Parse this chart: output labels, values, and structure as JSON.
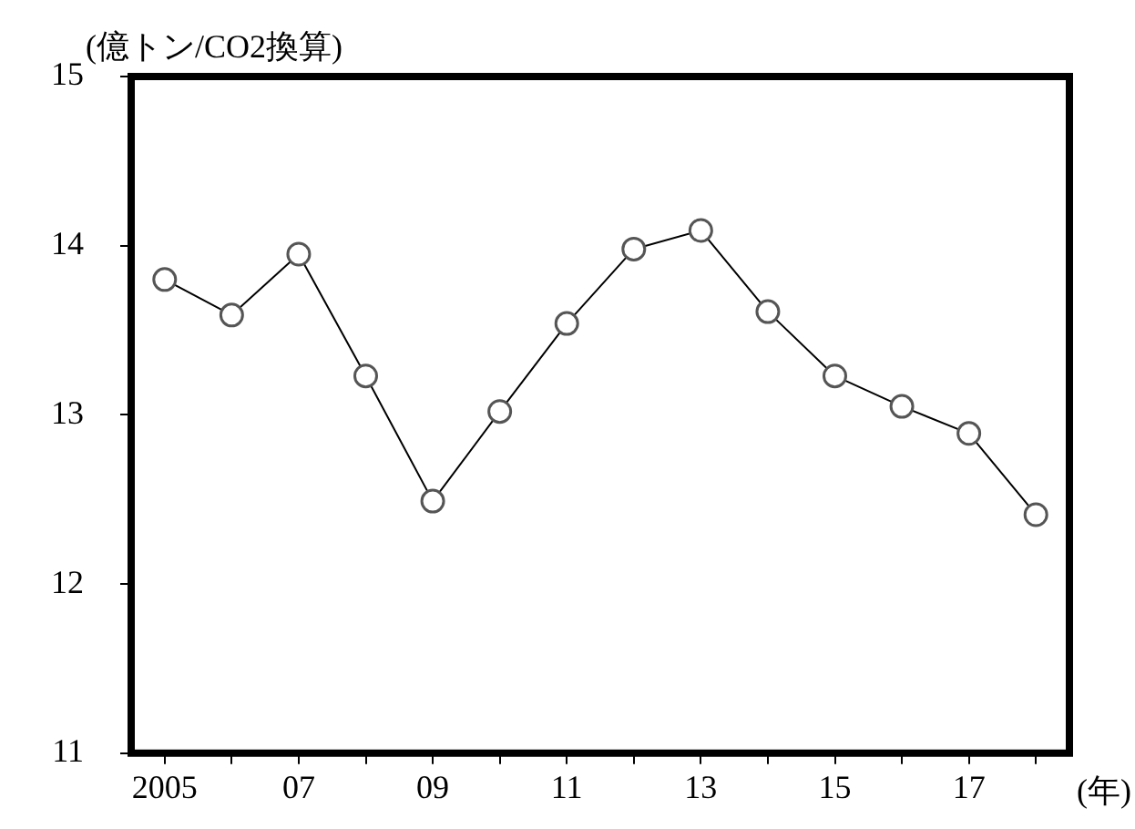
{
  "chart_data": {
    "type": "line",
    "ylabel": "(億トン/CO2換算)",
    "xlabel": "(年)",
    "categories": [
      "2005",
      null,
      "07",
      null,
      "09",
      null,
      "11",
      null,
      "13",
      null,
      "15",
      null,
      "17",
      null
    ],
    "series": [
      {
        "color": "#000000",
        "values": [
          13.8,
          13.59,
          13.95,
          13.23,
          12.49,
          13.02,
          13.54,
          13.98,
          14.09,
          13.61,
          13.23,
          13.05,
          12.89,
          12.41
        ]
      }
    ],
    "ylim": [
      11,
      15
    ],
    "yticks": [
      11,
      12,
      13,
      14,
      15
    ],
    "grid": false,
    "legend": false,
    "marker": "circle",
    "line_style": "solid"
  }
}
